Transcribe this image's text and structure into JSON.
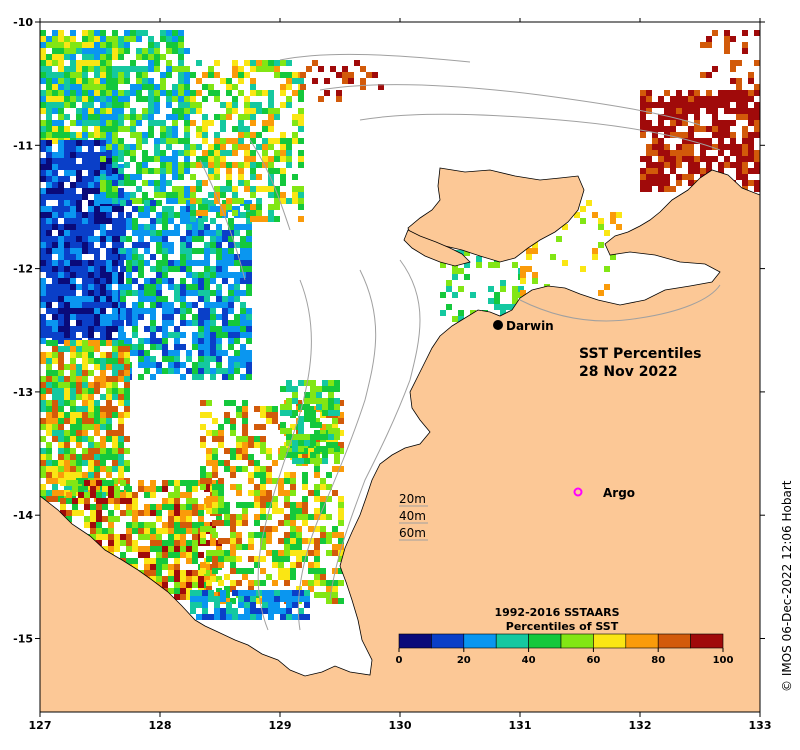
{
  "map": {
    "title_line1": "SST Percentiles",
    "title_line2": "28 Nov 2022",
    "lon_ticks": [
      "127",
      "128",
      "129",
      "130",
      "131",
      "132",
      "133"
    ],
    "lat_ticks": [
      "-10",
      "-11",
      "-12",
      "-13",
      "-14",
      "-15"
    ],
    "place": {
      "name": "Darwin",
      "marker_color": "#000000"
    },
    "argo": {
      "label": "Argo",
      "marker_color": "#ff00ff"
    },
    "depth_legend": [
      "20m",
      "40m",
      "60m"
    ],
    "land_color": "#fcc896",
    "ocean_nodata_color": "#ffffff",
    "contour_color": "#a0a0a0"
  },
  "colorbar": {
    "title_line1": "1992-2016 SSTAARS",
    "title_line2": "Percentiles of SST",
    "ticks": [
      "0",
      "20",
      "40",
      "60",
      "80",
      "100"
    ],
    "colors": [
      "#0a0a7a",
      "#0a3fc8",
      "#0a96f0",
      "#14c8a0",
      "#14c83c",
      "#82e614",
      "#fae614",
      "#fa9b0a",
      "#d25a0a",
      "#a00a0a"
    ]
  },
  "credit": "© IMOS 06-Dec-2022 12:06 Hobart"
}
